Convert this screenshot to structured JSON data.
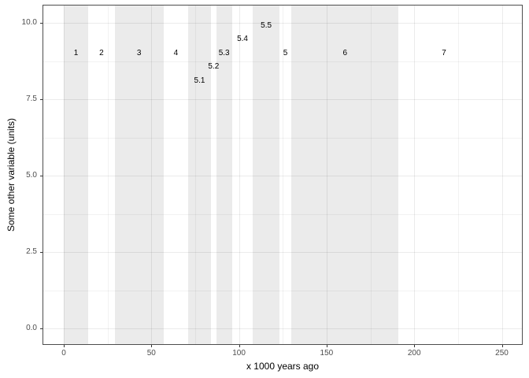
{
  "chart_data": {
    "type": "interval-bands",
    "title": "",
    "xlabel": "x 1000 years ago",
    "ylabel": "Some other variable (units)",
    "xlim": [
      -12.1,
      261.9
    ],
    "ylim": [
      -0.52,
      10.62
    ],
    "grid": "major+minor",
    "legend": false,
    "x_major_ticks": [
      0,
      50,
      100,
      150,
      200,
      250
    ],
    "x_tick_labels": [
      "0",
      "50",
      "100",
      "150",
      "200",
      "250"
    ],
    "x_minor_ticks": [
      25,
      75,
      125,
      175,
      225
    ],
    "y_major_ticks": [
      0,
      2.5,
      5,
      7.5,
      10
    ],
    "y_tick_labels": [
      "0.0",
      "2.5",
      "5.0",
      "7.5",
      "10.0"
    ],
    "y_minor_ticks": [
      1.25,
      3.75,
      6.25,
      8.75
    ],
    "stages": [
      {
        "label": "1",
        "start": 0,
        "end": 14,
        "shaded": true,
        "label_y": 9
      },
      {
        "label": "2",
        "start": 14,
        "end": 29,
        "shaded": false,
        "label_y": 9
      },
      {
        "label": "3",
        "start": 29,
        "end": 57,
        "shaded": true,
        "label_y": 9
      },
      {
        "label": "4",
        "start": 57,
        "end": 71,
        "shaded": false,
        "label_y": 9
      },
      {
        "label": "5.1",
        "start": 71,
        "end": 84,
        "shaded": true,
        "label_y": 8.1
      },
      {
        "label": "5.2",
        "start": 84,
        "end": 87,
        "shaded": false,
        "label_y": 8.55
      },
      {
        "label": "5.3",
        "start": 87,
        "end": 96,
        "shaded": true,
        "label_y": 9
      },
      {
        "label": "5.4",
        "start": 96,
        "end": 108,
        "shaded": false,
        "label_y": 9.45
      },
      {
        "label": "5.5",
        "start": 108,
        "end": 123,
        "shaded": true,
        "label_y": 9.9
      },
      {
        "label": "5",
        "start": 123,
        "end": 130,
        "shaded": false,
        "label_y": 9
      },
      {
        "label": "6",
        "start": 130,
        "end": 191,
        "shaded": true,
        "label_y": 9
      },
      {
        "label": "7",
        "start": 191,
        "end": 243,
        "shaded": false,
        "label_y": 9
      }
    ],
    "colors": {
      "band_fill": "#ebebeb",
      "panel_background": "#ffffff",
      "panel_border": "#4d4d4d",
      "grid_major": "rgba(0,0,0,0.08)",
      "grid_minor": "rgba(0,0,0,0.05)",
      "tick_mark": "#333333",
      "tick_label": "#4d4d4d",
      "stage_label": "#000000"
    }
  }
}
